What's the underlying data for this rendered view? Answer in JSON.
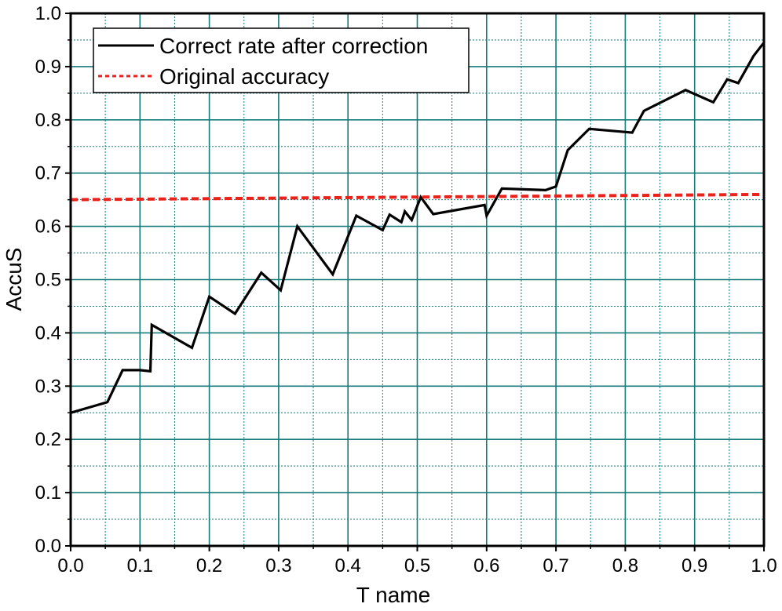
{
  "chart_data": {
    "type": "line",
    "xlabel": "T name",
    "ylabel": "AccuS",
    "xlim": [
      0.0,
      1.0
    ],
    "ylim": [
      0.0,
      1.0
    ],
    "x_ticks": [
      "0.0",
      "0.1",
      "0.2",
      "0.3",
      "0.4",
      "0.5",
      "0.6",
      "0.7",
      "0.8",
      "0.9",
      "1.0"
    ],
    "y_ticks": [
      "0.0",
      "0.1",
      "0.2",
      "0.3",
      "0.4",
      "0.5",
      "0.6",
      "0.7",
      "0.8",
      "0.9",
      "1.0"
    ],
    "grid": true,
    "legend_position": "top-left",
    "series": [
      {
        "name": "Correct rate after correction",
        "color": "#000000",
        "style": "solid",
        "points": [
          [
            0.0,
            0.25
          ],
          [
            0.053,
            0.27
          ],
          [
            0.075,
            0.33
          ],
          [
            0.1,
            0.33
          ],
          [
            0.115,
            0.328
          ],
          [
            0.117,
            0.415
          ],
          [
            0.175,
            0.372
          ],
          [
            0.2,
            0.468
          ],
          [
            0.237,
            0.436
          ],
          [
            0.275,
            0.513
          ],
          [
            0.303,
            0.48
          ],
          [
            0.327,
            0.6
          ],
          [
            0.378,
            0.51
          ],
          [
            0.412,
            0.62
          ],
          [
            0.45,
            0.593
          ],
          [
            0.46,
            0.622
          ],
          [
            0.477,
            0.608
          ],
          [
            0.482,
            0.628
          ],
          [
            0.492,
            0.612
          ],
          [
            0.505,
            0.655
          ],
          [
            0.523,
            0.623
          ],
          [
            0.597,
            0.64
          ],
          [
            0.6,
            0.62
          ],
          [
            0.622,
            0.671
          ],
          [
            0.685,
            0.668
          ],
          [
            0.7,
            0.675
          ],
          [
            0.717,
            0.743
          ],
          [
            0.748,
            0.783
          ],
          [
            0.81,
            0.776
          ],
          [
            0.827,
            0.817
          ],
          [
            0.887,
            0.856
          ],
          [
            0.927,
            0.833
          ],
          [
            0.947,
            0.876
          ],
          [
            0.963,
            0.869
          ],
          [
            0.985,
            0.92
          ],
          [
            1.0,
            0.945
          ]
        ]
      },
      {
        "name": "Original accuracy",
        "color": "#e8231e",
        "style": "dashed",
        "points": [
          [
            0.0,
            0.65
          ],
          [
            1.0,
            0.66
          ]
        ]
      }
    ]
  }
}
